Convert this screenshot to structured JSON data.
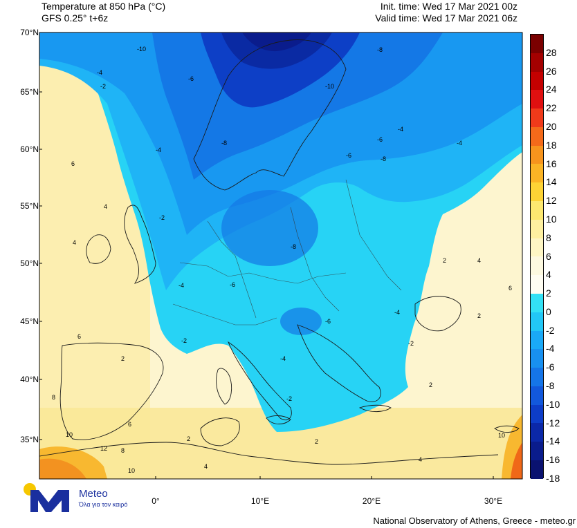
{
  "header": {
    "title": "Temperature at 850 hPa (°C)",
    "model": "GFS 0.25° t+6z",
    "init_time": "Init. time: Wed 17 Mar 2021 00z",
    "valid_time": "Valid time: Wed 17 Mar 2021 06z"
  },
  "axes": {
    "lat_labels": [
      "70°N",
      "65°N",
      "60°N",
      "55°N",
      "50°N",
      "45°N",
      "40°N",
      "35°N"
    ],
    "lon_labels": [
      "0°",
      "10°E",
      "20°E",
      "30°E"
    ]
  },
  "colorbar": {
    "labels": [
      "28",
      "26",
      "24",
      "22",
      "20",
      "18",
      "16",
      "14",
      "12",
      "10",
      "8",
      "6",
      "4",
      "2",
      "0",
      "-2",
      "-4",
      "-6",
      "-8",
      "-10",
      "-12",
      "-14",
      "-16",
      "-18"
    ],
    "colors": [
      "#7a0000",
      "#a30000",
      "#c40000",
      "#e01010",
      "#f03a1a",
      "#f46a1a",
      "#f7941d",
      "#fbb425",
      "#fdd335",
      "#fde870",
      "#fef0a0",
      "#fef6c4",
      "#fdf9e0",
      "#fffdf2",
      "#33e1f5",
      "#22c7f6",
      "#1aa9f7",
      "#1890f0",
      "#1575e8",
      "#1258dc",
      "#0d3dc8",
      "#0b28a8",
      "#0a1c8c",
      "#0a1270"
    ]
  },
  "map_labels": [
    {
      "text": "-10"
    },
    {
      "text": "-8"
    },
    {
      "text": "-6"
    },
    {
      "text": "-4"
    },
    {
      "text": "-2"
    },
    {
      "text": "2"
    },
    {
      "text": "4"
    },
    {
      "text": "6"
    },
    {
      "text": "8"
    },
    {
      "text": "10"
    },
    {
      "text": "12"
    }
  ],
  "logo": {
    "name": "Meteo",
    "tagline": "Όλα για τον καιρό"
  },
  "credit": "National Observatory of Athens, Greece - meteo.gr"
}
